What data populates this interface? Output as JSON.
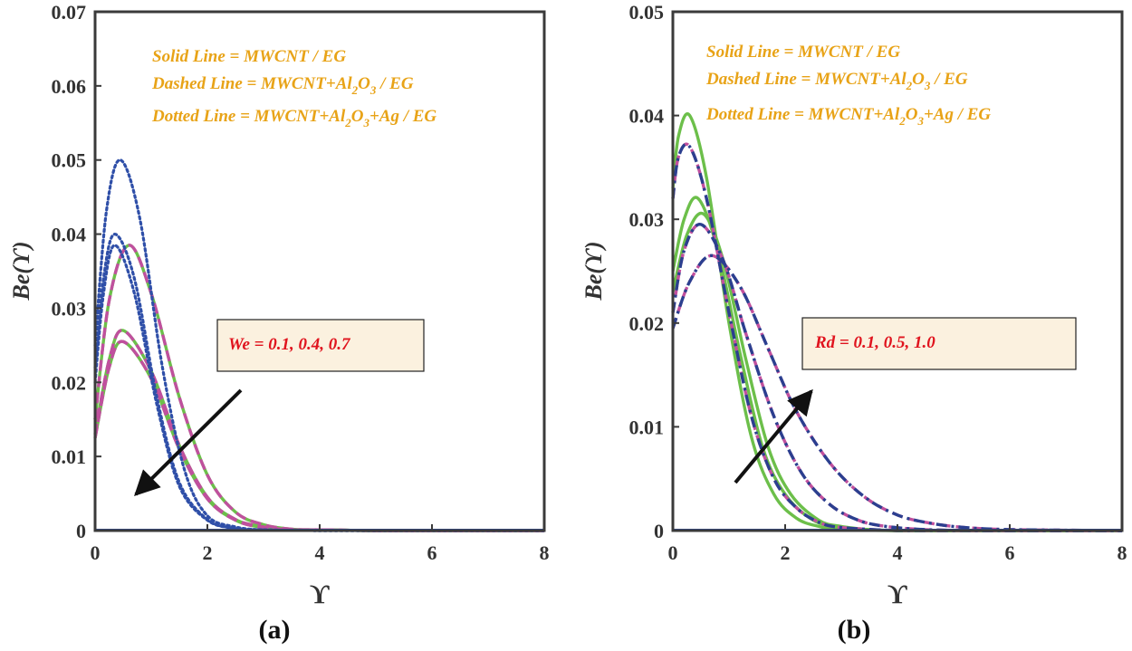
{
  "chart_data": [
    {
      "type": "line",
      "panel": "(a)",
      "xlabel": "ϒ",
      "ylabel": "Be(ϒ)",
      "xlim": [
        0,
        8
      ],
      "ylim": [
        0,
        0.07
      ],
      "xticks": [
        "0",
        "2",
        "4",
        "6",
        "8"
      ],
      "yticks": [
        "0",
        "0.01",
        "0.02",
        "0.03",
        "0.04",
        "0.05",
        "0.06",
        "0.07"
      ],
      "legend": {
        "solid": "Solid Line = MWCNT / EG",
        "dashed": "Dashed Line = MWCNT+Al",
        "dashed_sub1": "2",
        "dashed_mid": "O",
        "dashed_sub2": "3",
        "dashed_tail": " / EG",
        "dotted": "Dotted Line = MWCNT+Al",
        "dotted_sub1": "2",
        "dotted_mid": "O",
        "dotted_sub2": "3",
        "dotted_tail": "+Ag / EG"
      },
      "parameter_label": "We = 0.1, 0.4, 0.7",
      "arrow_direction": "down-left",
      "series": [
        {
          "name": "MWCNT / EG, We=0.1",
          "style": "solid",
          "color": "#6cbf4a",
          "x": [
            0,
            0.25,
            0.6,
            1.0,
            1.5,
            2.0,
            2.5,
            3.0,
            3.5,
            4.0,
            5.0,
            6.0,
            8.0
          ],
          "y": [
            0.015,
            0.031,
            0.0385,
            0.032,
            0.018,
            0.0075,
            0.0025,
            0.0008,
            0.0002,
            0.0001,
            0,
            0,
            0
          ]
        },
        {
          "name": "MWCNT / EG, We=0.4",
          "style": "solid",
          "color": "#6cbf4a",
          "x": [
            0,
            0.25,
            0.5,
            1.0,
            1.5,
            2.0,
            2.5,
            3.0,
            3.5,
            4.0,
            5.0,
            6.0,
            8.0
          ],
          "y": [
            0.013,
            0.023,
            0.027,
            0.0215,
            0.0115,
            0.0045,
            0.0015,
            0.0005,
            0.0001,
            0.0001,
            0,
            0,
            0
          ]
        },
        {
          "name": "MWCNT / EG, We=0.7",
          "style": "solid",
          "color": "#6cbf4a",
          "x": [
            0,
            0.25,
            0.5,
            1.0,
            1.5,
            2.0,
            2.5,
            3.0,
            3.5,
            4.0,
            5.0,
            6.0,
            8.0
          ],
          "y": [
            0.0125,
            0.022,
            0.0255,
            0.0205,
            0.011,
            0.0043,
            0.0014,
            0.0004,
            0.0001,
            0.0001,
            0,
            0,
            0
          ]
        },
        {
          "name": "MWCNT+Al2O3 / EG, We=0.1",
          "style": "dashed",
          "color": "#c0509e",
          "x": [
            0,
            0.25,
            0.6,
            1.0,
            1.5,
            2.0,
            2.5,
            3.0,
            3.5,
            4.0,
            5.0,
            6.0,
            8.0
          ],
          "y": [
            0.015,
            0.031,
            0.0385,
            0.032,
            0.018,
            0.0075,
            0.0025,
            0.0008,
            0.0002,
            0.0001,
            0,
            0,
            0
          ]
        },
        {
          "name": "MWCNT+Al2O3 / EG, We=0.4",
          "style": "dashed",
          "color": "#c0509e",
          "x": [
            0,
            0.25,
            0.5,
            1.0,
            1.5,
            2.0,
            2.5,
            3.0,
            3.5,
            4.0,
            5.0,
            6.0,
            8.0
          ],
          "y": [
            0.013,
            0.023,
            0.027,
            0.0215,
            0.0115,
            0.0045,
            0.0015,
            0.0005,
            0.0001,
            0.0001,
            0,
            0,
            0
          ]
        },
        {
          "name": "MWCNT+Al2O3 / EG, We=0.7",
          "style": "dashed",
          "color": "#c0509e",
          "x": [
            0,
            0.25,
            0.5,
            1.0,
            1.5,
            2.0,
            2.5,
            3.0,
            3.5,
            4.0,
            5.0,
            6.0,
            8.0
          ],
          "y": [
            0.0125,
            0.022,
            0.0255,
            0.0205,
            0.011,
            0.0043,
            0.0014,
            0.0004,
            0.0001,
            0.0001,
            0,
            0,
            0
          ]
        },
        {
          "name": "MWCNT+Al2O3+Ag / EG, We=0.1",
          "style": "dotted",
          "color": "#2f4fa8",
          "x": [
            0,
            0.2,
            0.45,
            0.8,
            1.2,
            1.6,
            2.0,
            2.5,
            3.0,
            4.0,
            5.0,
            8.0
          ],
          "y": [
            0.025,
            0.043,
            0.05,
            0.042,
            0.022,
            0.008,
            0.002,
            0.0005,
            0.0001,
            0,
            0,
            0
          ]
        },
        {
          "name": "MWCNT+Al2O3+Ag / EG, We=0.4",
          "style": "dotted",
          "color": "#2f4fa8",
          "x": [
            0,
            0.15,
            0.35,
            0.7,
            1.1,
            1.5,
            2.0,
            2.5,
            3.0,
            4.0,
            5.0,
            8.0
          ],
          "y": [
            0.022,
            0.034,
            0.04,
            0.034,
            0.018,
            0.0065,
            0.0015,
            0.0003,
            0.0001,
            0,
            0,
            0
          ]
        },
        {
          "name": "MWCNT+Al2O3+Ag / EG, We=0.7",
          "style": "dotted",
          "color": "#2f4fa8",
          "x": [
            0,
            0.15,
            0.35,
            0.7,
            1.1,
            1.5,
            2.0,
            2.5,
            3.0,
            4.0,
            5.0,
            8.0
          ],
          "y": [
            0.02,
            0.032,
            0.0385,
            0.032,
            0.017,
            0.006,
            0.0014,
            0.0003,
            0.0001,
            0,
            0,
            0
          ]
        }
      ]
    },
    {
      "type": "line",
      "panel": "(b)",
      "xlabel": "ϒ",
      "ylabel": "Be(ϒ)",
      "xlim": [
        0,
        8
      ],
      "ylim": [
        0,
        0.05
      ],
      "xticks": [
        "0",
        "2",
        "4",
        "6",
        "8"
      ],
      "yticks": [
        "0",
        "0.01",
        "0.02",
        "0.03",
        "0.04",
        "0.05"
      ],
      "legend": {
        "solid": "Solid Line = MWCNT / EG",
        "dashed": "Dashed Line = MWCNT+Al",
        "dashed_sub1": "2",
        "dashed_mid": "O",
        "dashed_sub2": "3",
        "dashed_tail": " / EG",
        "dotted": "Dotted Line = MWCNT+Al",
        "dotted_sub1": "2",
        "dotted_mid": "O",
        "dotted_sub2": "3",
        "dotted_tail": "+Ag / EG"
      },
      "parameter_label": "Rd = 0.1, 0.5, 1.0",
      "arrow_direction": "up-right",
      "series": [
        {
          "name": "MWCNT / EG, Rd=0.1",
          "style": "solid",
          "color": "#6cbf4a",
          "x": [
            0,
            0.1,
            0.3,
            0.6,
            1.0,
            1.4,
            1.8,
            2.2,
            2.6,
            3.0,
            4.0,
            5.0,
            8.0
          ],
          "y": [
            0.033,
            0.038,
            0.04,
            0.034,
            0.02,
            0.009,
            0.0035,
            0.0012,
            0.0004,
            0.0001,
            0,
            0,
            0
          ]
        },
        {
          "name": "MWCNT / EG, Rd=0.5",
          "style": "solid",
          "color": "#6cbf4a",
          "x": [
            0,
            0.2,
            0.45,
            0.8,
            1.2,
            1.6,
            2.0,
            2.5,
            3.0,
            3.5,
            4.0,
            5.0,
            8.0
          ],
          "y": [
            0.025,
            0.03,
            0.032,
            0.027,
            0.017,
            0.008,
            0.0035,
            0.001,
            0.0003,
            0.0001,
            0,
            0,
            0
          ]
        },
        {
          "name": "MWCNT / EG, Rd=1.0",
          "style": "solid",
          "color": "#6cbf4a",
          "x": [
            0,
            0.25,
            0.55,
            0.9,
            1.3,
            1.7,
            2.1,
            2.6,
            3.0,
            3.5,
            4.0,
            5.0,
            8.0
          ],
          "y": [
            0.023,
            0.0285,
            0.0305,
            0.026,
            0.0165,
            0.008,
            0.0035,
            0.001,
            0.0004,
            0.0001,
            0,
            0,
            0
          ]
        },
        {
          "name": "MWCNT+Al2O3 / EG, Rd=0.1",
          "style": "dashed",
          "color": "#c0509e",
          "x": [
            0,
            0.1,
            0.3,
            0.6,
            1.0,
            1.4,
            1.8,
            2.2,
            2.6,
            3.0,
            4.0,
            5.0,
            8.0
          ],
          "y": [
            0.032,
            0.036,
            0.037,
            0.032,
            0.021,
            0.011,
            0.005,
            0.0022,
            0.0008,
            0.0003,
            0,
            0,
            0
          ]
        },
        {
          "name": "MWCNT+Al2O3 / EG, Rd=0.5",
          "style": "dashed",
          "color": "#c0509e",
          "x": [
            0,
            0.2,
            0.5,
            0.9,
            1.3,
            1.8,
            2.3,
            2.8,
            3.3,
            3.8,
            4.5,
            5.5,
            8.0
          ],
          "y": [
            0.021,
            0.027,
            0.0295,
            0.026,
            0.019,
            0.011,
            0.0055,
            0.0025,
            0.001,
            0.0004,
            0.0001,
            0,
            0
          ]
        },
        {
          "name": "MWCNT+Al2O3 / EG, Rd=1.0",
          "style": "dashed",
          "color": "#c0509e",
          "x": [
            0,
            0.3,
            0.7,
            1.2,
            1.7,
            2.2,
            2.8,
            3.4,
            4.0,
            4.6,
            5.2,
            6.0,
            8.0
          ],
          "y": [
            0.0195,
            0.024,
            0.0265,
            0.0235,
            0.0175,
            0.0115,
            0.0065,
            0.0033,
            0.0015,
            0.0007,
            0.0003,
            0.0001,
            0
          ]
        },
        {
          "name": "MWCNT+Al2O3+Ag / EG, Rd=0.1",
          "style": "dashdot",
          "color": "#2b3f8f",
          "x": [
            0,
            0.1,
            0.3,
            0.6,
            1.0,
            1.4,
            1.8,
            2.2,
            2.6,
            3.0,
            4.0,
            5.0,
            8.0
          ],
          "y": [
            0.032,
            0.036,
            0.037,
            0.032,
            0.021,
            0.011,
            0.005,
            0.0022,
            0.0008,
            0.0003,
            0,
            0,
            0
          ]
        },
        {
          "name": "MWCNT+Al2O3+Ag / EG, Rd=0.5",
          "style": "dashdot",
          "color": "#2b3f8f",
          "x": [
            0,
            0.2,
            0.5,
            0.9,
            1.3,
            1.8,
            2.3,
            2.8,
            3.3,
            3.8,
            4.5,
            5.5,
            8.0
          ],
          "y": [
            0.021,
            0.027,
            0.0295,
            0.026,
            0.019,
            0.011,
            0.0055,
            0.0025,
            0.001,
            0.0004,
            0.0001,
            0,
            0
          ]
        },
        {
          "name": "MWCNT+Al2O3+Ag / EG, Rd=1.0",
          "style": "dashdot",
          "color": "#2b3f8f",
          "x": [
            0,
            0.3,
            0.7,
            1.2,
            1.7,
            2.2,
            2.8,
            3.4,
            4.0,
            4.6,
            5.2,
            6.0,
            8.0
          ],
          "y": [
            0.0195,
            0.024,
            0.0265,
            0.0235,
            0.0175,
            0.0115,
            0.0065,
            0.0033,
            0.0015,
            0.0007,
            0.0003,
            0.0001,
            0
          ]
        }
      ]
    }
  ],
  "colors": {
    "axis": "#3a3a3a",
    "legend_text": "#e8a317",
    "param_text": "#e0141e",
    "param_box_fill": "#fbf1df",
    "arrow": "#111111"
  }
}
